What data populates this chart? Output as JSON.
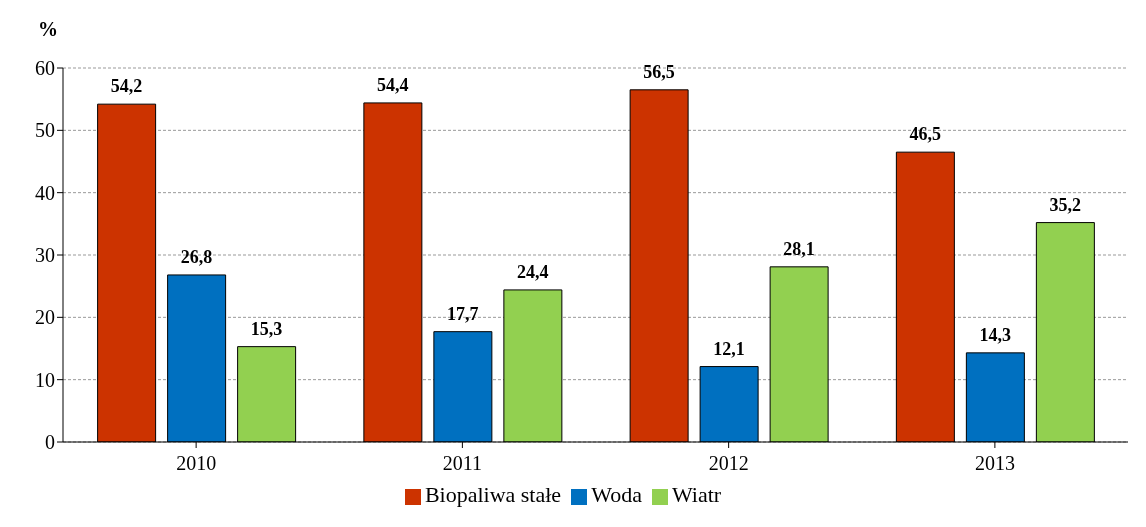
{
  "chart_data": {
    "type": "bar",
    "ylabel": "%",
    "categories": [
      "2010",
      "2011",
      "2012",
      "2013"
    ],
    "series": [
      {
        "name": "Biopaliwa stałe",
        "color": "#cc3300",
        "values": [
          54.2,
          54.4,
          56.5,
          46.5
        ],
        "value_labels": [
          "54,2",
          "54,4",
          "56,5",
          "46,5"
        ]
      },
      {
        "name": "Woda",
        "color": "#0070c0",
        "values": [
          26.8,
          17.7,
          12.1,
          14.3
        ],
        "value_labels": [
          "26,8",
          "17,7",
          "12,1",
          "14,3"
        ]
      },
      {
        "name": "Wiatr",
        "color": "#92d050",
        "values": [
          15.3,
          24.4,
          28.1,
          35.2
        ],
        "value_labels": [
          "15,3",
          "24,4",
          "28,1",
          "35,2"
        ]
      }
    ],
    "ylim": [
      0,
      60
    ],
    "yticks": [
      0,
      10,
      20,
      30,
      40,
      50,
      60
    ],
    "grid": "y",
    "legend": "bottom"
  }
}
